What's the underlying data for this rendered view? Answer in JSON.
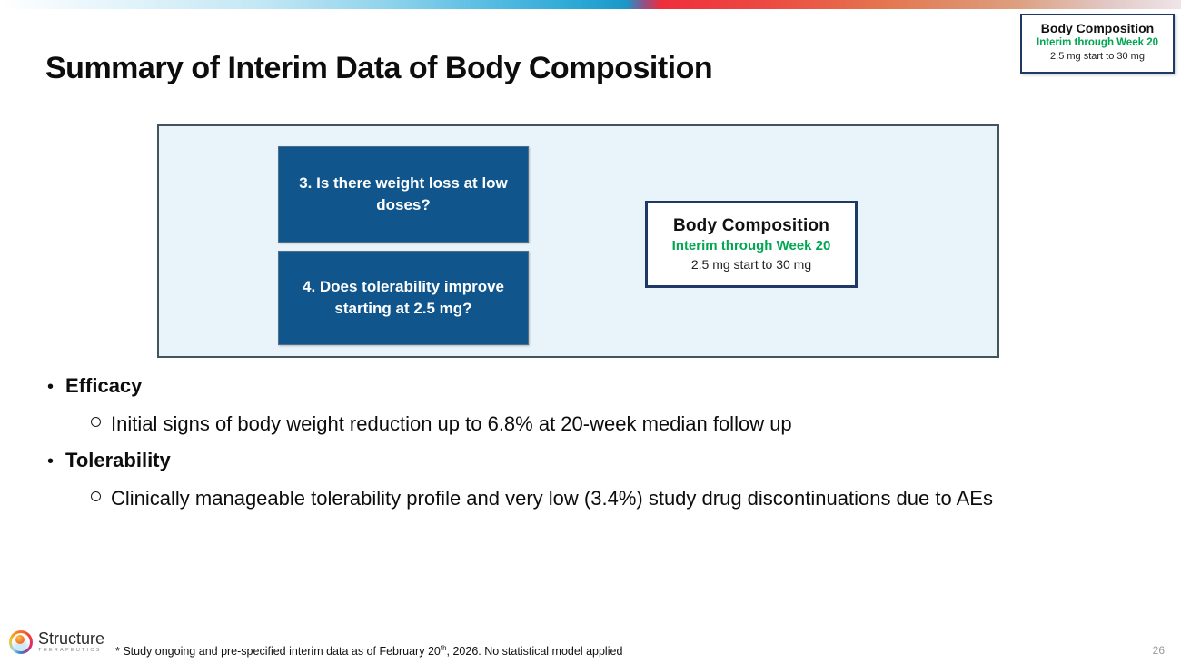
{
  "title": "Summary of Interim Data of Body Composition",
  "corner_badge": {
    "title": "Body Composition",
    "subtitle": "Interim through Week 20",
    "detail": "2.5 mg start to 30 mg"
  },
  "panel": {
    "question_boxes": [
      {
        "label": "3. Is there weight loss at low doses?"
      },
      {
        "label": "4. Does tolerability improve starting at 2.5 mg?"
      }
    ],
    "study_box": {
      "title": "Body Composition",
      "subtitle": "Interim through Week 20",
      "detail": "2.5 mg start to 30 mg"
    }
  },
  "bullets": [
    {
      "label": "Efficacy",
      "items": [
        "Initial signs of body weight reduction up to 6.8% at 20-week median follow up"
      ]
    },
    {
      "label": "Tolerability",
      "items": [
        "Clinically manageable tolerability profile and very low (3.4%) study drug discontinuations due to AEs"
      ]
    }
  ],
  "footer": {
    "logo_name": "Structure",
    "logo_subname": "THERAPEUTICS",
    "footnote_prefix": "* Study ongoing and pre-specified interim data as of February 20",
    "footnote_sup": "th",
    "footnote_suffix": ", 2026. No statistical model applied",
    "page_number": "26"
  },
  "colors": {
    "accent_blue": "#25A5D4",
    "accent_red": "#EE2E3C",
    "question_box_blue": "#10568C",
    "green": "#00A651",
    "navy_border": "#1F3864",
    "panel_bg": "#E9F4FA",
    "panel_border": "#44545C"
  }
}
